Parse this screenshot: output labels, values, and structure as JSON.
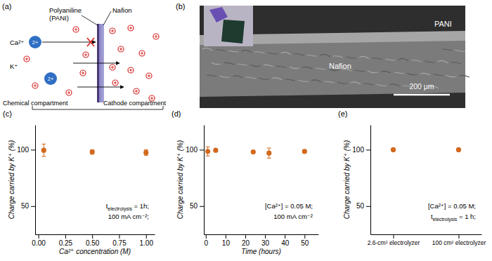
{
  "diagram": {
    "label": "(a)",
    "polyaniline": [
      "Polyaniline",
      "(PANI)"
    ],
    "nafion": "Nafion",
    "ca_ion": "Ca²⁺",
    "ca_charge": "2+",
    "k_ion": "K⁺",
    "left_compartment": "Chemical compartment",
    "right_compartment": "Cathode compartment"
  },
  "image": {
    "label": "(b)",
    "pani": "PANI",
    "nafion": "Nafion",
    "scale_bar": "200 μm"
  },
  "chart_data": [
    {
      "type": "scatter",
      "title": "(c)",
      "x_label": "Ca²⁺ concentration (M)",
      "y_label": "Charge carried by K⁺ (%)",
      "x": [
        0.05,
        0.5,
        1.0
      ],
      "values": [
        99.5,
        98,
        97.5
      ],
      "errors": [
        5.5,
        2,
        2.5
      ],
      "xlim": [
        -0.03,
        1.08
      ],
      "xticks": [
        {
          "value": 0,
          "label": "0.00"
        },
        0.25,
        {
          "value": 0.5,
          "label": "0.50"
        },
        0.75,
        {
          "value": 1,
          "label": "1.00"
        }
      ],
      "ylim": [
        25,
        122
      ],
      "yticks": [
        50,
        100
      ],
      "color": "#d2691e",
      "marker": "circle",
      "annotations": [
        {
          "main": "t",
          "sub": "electrolysis",
          "tail": " = 1h;"
        },
        {
          "main": "100 mA cm⁻²;"
        }
      ]
    },
    {
      "type": "scatter",
      "title": "(d)",
      "x_label": "Time (hours)",
      "y_label": "Charge carried by K⁺ (%)",
      "x": [
        1,
        5,
        24,
        32,
        50
      ],
      "values": [
        98.5,
        99.5,
        98,
        97,
        98.5
      ],
      "errors": [
        4,
        1.2,
        1,
        4.5,
        1.5
      ],
      "xlim": [
        -1,
        57
      ],
      "xticks": [
        0,
        10,
        20,
        30,
        40,
        50
      ],
      "ylim": [
        25,
        122
      ],
      "yticks": [
        50,
        100
      ],
      "color": "#d2691e",
      "marker": "circle",
      "annotations": [
        {
          "main": "[Ca²⁺] = 0.05 M;"
        },
        {
          "main": "100 mA cm⁻²"
        }
      ]
    },
    {
      "type": "scatter",
      "title": "(e)",
      "y_label": "Charge carried by K⁺ (%)",
      "categories": [
        "2.6-cm² electrolyzer",
        "100 cm² electrolyzer"
      ],
      "values": [
        100,
        100
      ],
      "errors": [
        0.5,
        0.5
      ],
      "ylim": [
        25,
        122
      ],
      "yticks": [
        50,
        100
      ],
      "color": "#d2691e",
      "marker": "circle",
      "annotations": [
        {
          "main": "[Ca²⁺] = 0.05 M;"
        },
        {
          "main": "t",
          "sub": "electrolysis",
          "tail": " = 1 h;"
        }
      ]
    }
  ]
}
